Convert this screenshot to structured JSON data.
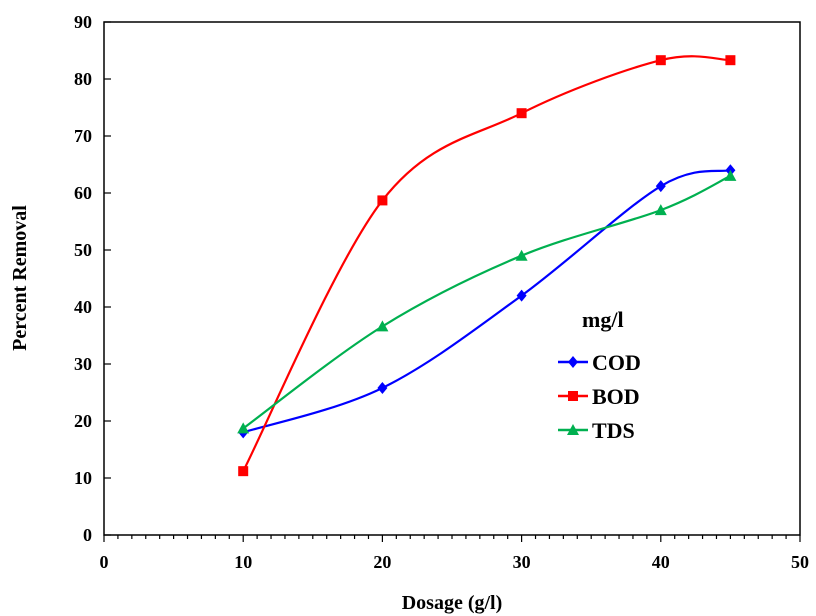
{
  "chart_data": {
    "type": "line",
    "title": "",
    "xlabel": "Dosage (g/l)",
    "ylabel": "Percent Removal",
    "xlim": [
      0,
      50
    ],
    "ylim": [
      0,
      90
    ],
    "x_ticks": [
      0,
      10,
      20,
      30,
      40,
      50
    ],
    "y_ticks": [
      0,
      10,
      20,
      30,
      40,
      50,
      60,
      70,
      80,
      90
    ],
    "x_tick_labels": [
      "0",
      "10",
      "20",
      "30",
      "40",
      "50"
    ],
    "y_tick_labels": [
      "0",
      "10",
      "20",
      "30",
      "40",
      "50",
      "60",
      "70",
      "80",
      "90"
    ],
    "grid": false,
    "legend": {
      "title": "mg/l",
      "placement": "center-right"
    },
    "x": [
      10,
      20,
      30,
      40,
      45
    ],
    "series": [
      {
        "name": "COD",
        "values": [
          18,
          25.8,
          42,
          61.2,
          64
        ],
        "color": "#0000ff",
        "marker": "diamond"
      },
      {
        "name": "BOD",
        "values": [
          11.2,
          58.7,
          74,
          83.3,
          83.3
        ],
        "color": "#ff0000",
        "marker": "square"
      },
      {
        "name": "TDS",
        "values": [
          18.7,
          36.6,
          49,
          57,
          63
        ],
        "color": "#00b050",
        "marker": "triangle"
      }
    ]
  }
}
